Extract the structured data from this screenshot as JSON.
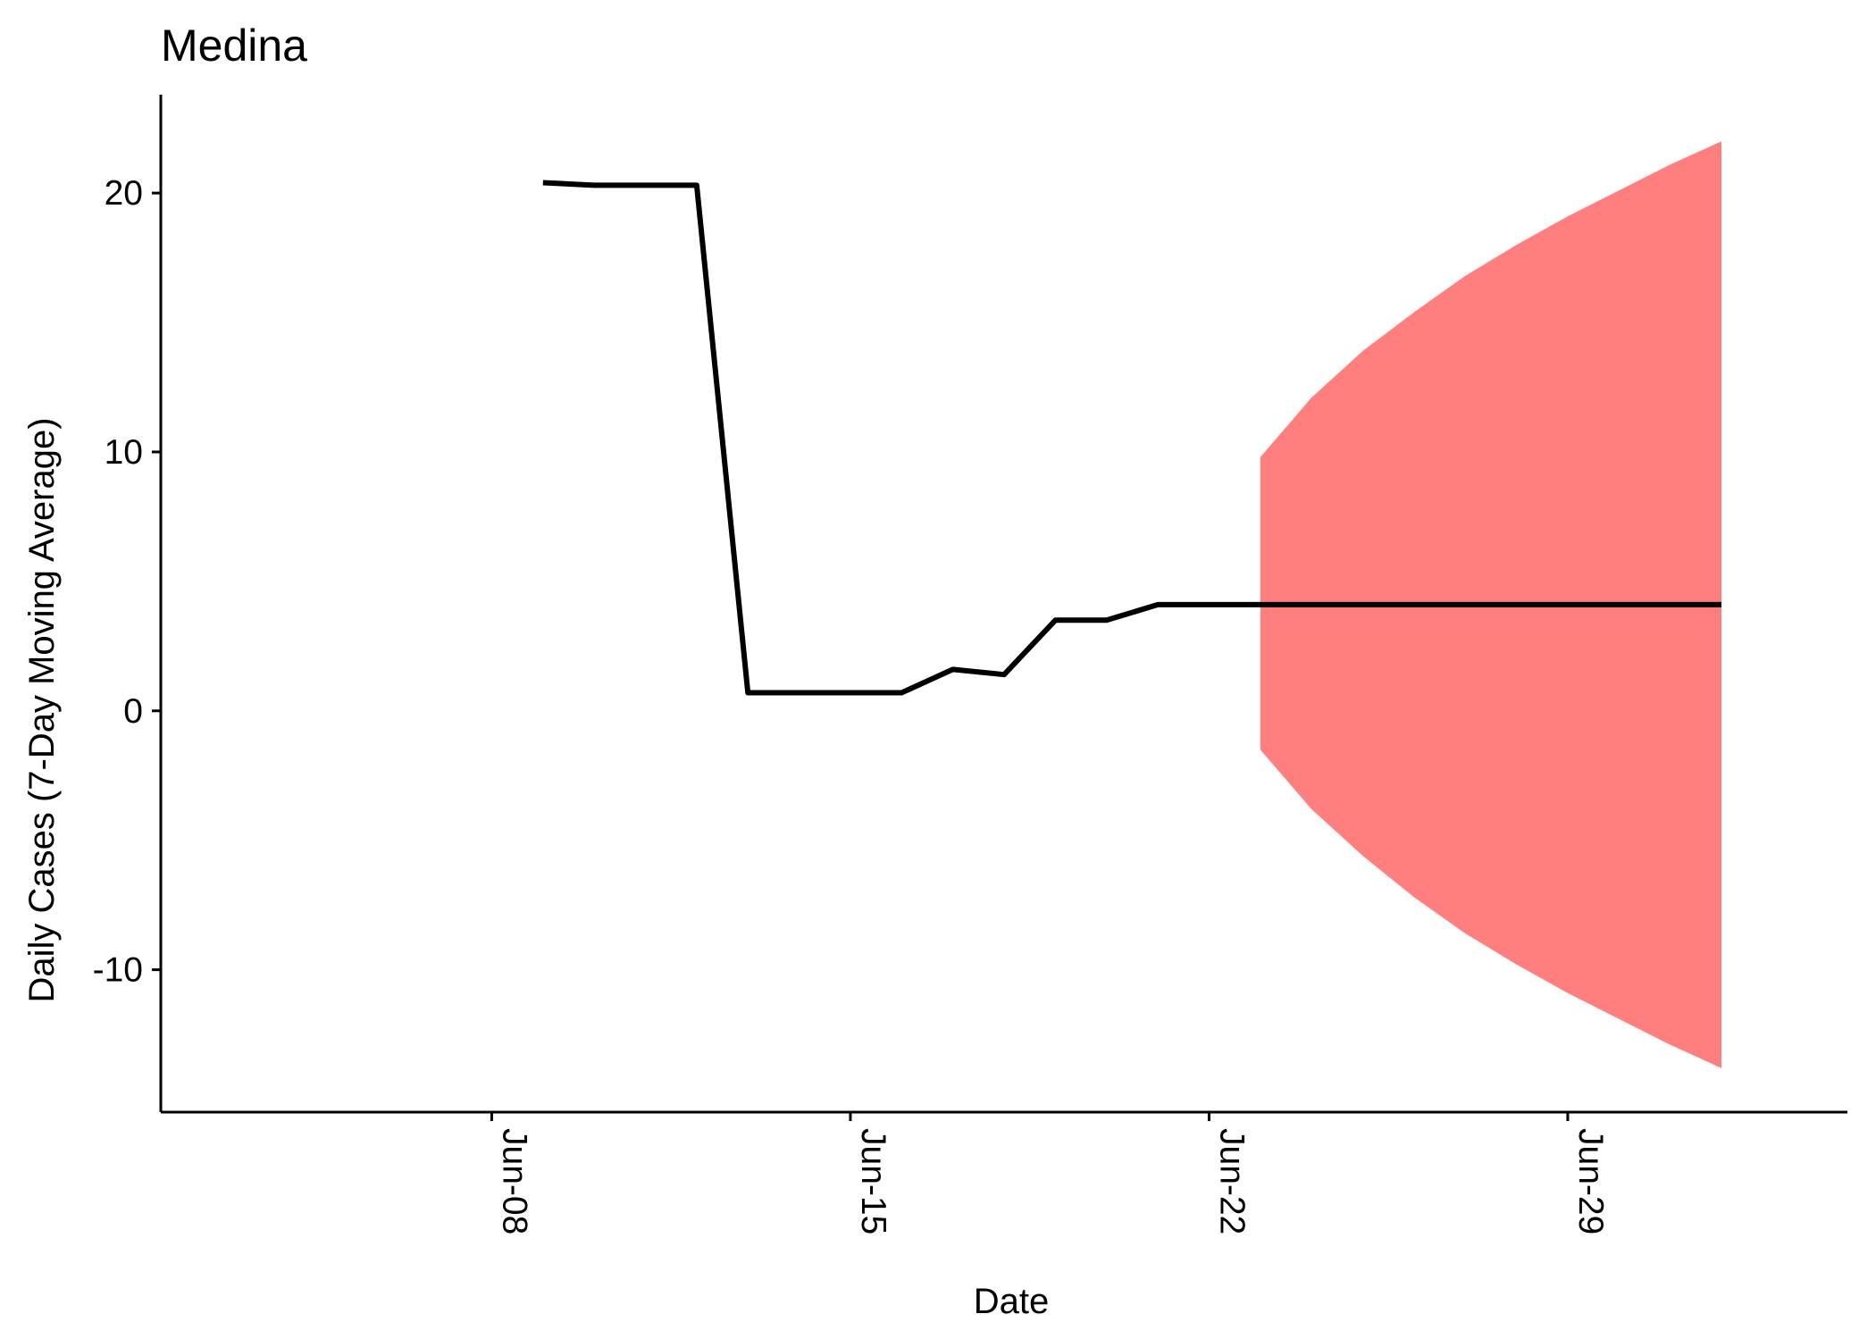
{
  "chart_data": {
    "type": "line",
    "title": "Medina",
    "xlabel": "Date",
    "ylabel": "Daily Cases (7-Day Moving Average)",
    "xlim": [
      "2020-06-01T13:00",
      "2020-07-04T11:00"
    ],
    "ylim": [
      -15.5,
      23.8
    ],
    "grid": false,
    "x_ticks": [
      {
        "date": "2020-06-08",
        "label": "Jun-08"
      },
      {
        "date": "2020-06-15",
        "label": "Jun-15"
      },
      {
        "date": "2020-06-22",
        "label": "Jun-22"
      },
      {
        "date": "2020-06-29",
        "label": "Jun-29"
      }
    ],
    "y_ticks": [
      {
        "value": -10,
        "label": "-10"
      },
      {
        "value": 0,
        "label": "0"
      },
      {
        "value": 10,
        "label": "10"
      },
      {
        "value": 20,
        "label": "20"
      }
    ],
    "series": [
      {
        "color": "#000000",
        "x": [
          "2020-06-09",
          "2020-06-10",
          "2020-06-11",
          "2020-06-12",
          "2020-06-13",
          "2020-06-14",
          "2020-06-15",
          "2020-06-16",
          "2020-06-17",
          "2020-06-18",
          "2020-06-19",
          "2020-06-20",
          "2020-06-21",
          "2020-06-22",
          "2020-06-23",
          "2020-06-24",
          "2020-06-25",
          "2020-06-26",
          "2020-06-27",
          "2020-06-28",
          "2020-06-29",
          "2020-06-30",
          "2020-07-01",
          "2020-07-02"
        ],
        "values": [
          20.4,
          20.3,
          20.3,
          20.3,
          0.7,
          0.7,
          0.7,
          0.7,
          1.6,
          1.4,
          3.5,
          3.5,
          4.1,
          4.1,
          4.1,
          4.1,
          4.1,
          4.1,
          4.1,
          4.1,
          4.1,
          4.1,
          4.1,
          4.1
        ]
      }
    ],
    "band": {
      "color": "#ff7f7f",
      "x": [
        "2020-06-23",
        "2020-06-24",
        "2020-06-25",
        "2020-06-26",
        "2020-06-27",
        "2020-06-28",
        "2020-06-29",
        "2020-06-30",
        "2020-07-01",
        "2020-07-02"
      ],
      "lower": [
        -1.5,
        -3.8,
        -5.6,
        -7.2,
        -8.6,
        -9.8,
        -10.9,
        -11.9,
        -12.9,
        -13.8
      ],
      "upper": [
        9.8,
        12.1,
        13.9,
        15.4,
        16.8,
        18.0,
        19.1,
        20.1,
        21.1,
        22.0
      ]
    }
  }
}
